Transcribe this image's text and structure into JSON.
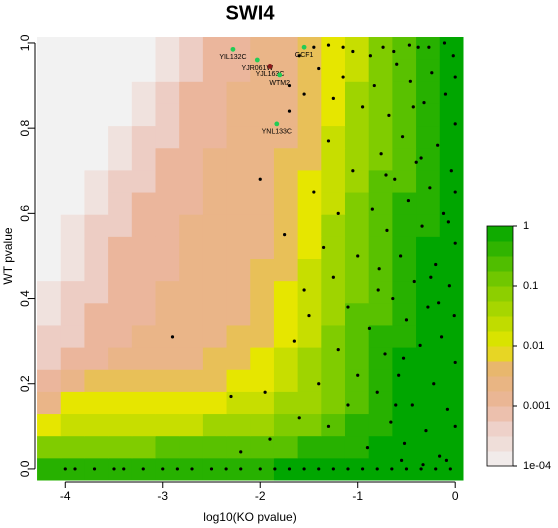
{
  "chart_data": {
    "type": "heatmap",
    "title": "SWI4",
    "x_label": "log10(KO pvalue)",
    "y_label": "WT pvalue",
    "xlim": [
      -4.29,
      0.08
    ],
    "ylim": [
      -0.026,
      1.014
    ],
    "xticks": [
      -4,
      -3,
      -2,
      -1,
      0
    ],
    "yticks": [
      {
        "value": 0,
        "label": "0.0"
      },
      0.2,
      0.4,
      0.6,
      0.8,
      {
        "value": 1,
        "label": "1.0"
      }
    ],
    "x": [
      -4.168,
      -3.925,
      -3.682,
      -3.439,
      -3.196,
      -2.953,
      -2.71,
      -2.467,
      -2.224,
      -1.981,
      -1.738,
      -1.495,
      -1.252,
      -1.009,
      -0.766,
      -0.523,
      -0.28,
      -0.037
    ],
    "y": [
      0,
      0.052,
      0.104,
      0.156,
      0.208,
      0.26,
      0.312,
      0.364,
      0.416,
      0.468,
      0.52,
      0.572,
      0.624,
      0.676,
      0.728,
      0.78,
      0.832,
      0.884,
      0.936,
      0.988
    ],
    "z": [
      [
        0.5,
        0.5,
        0.5,
        0.5,
        0.5,
        0.5,
        0.5,
        0.5,
        0.5,
        0.5,
        1,
        1,
        1,
        1,
        1,
        1,
        1,
        1
      ],
      [
        0.1,
        0.1,
        0.1,
        0.1,
        0.1,
        0.2,
        0.2,
        0.2,
        0.2,
        0.2,
        0.2,
        0.5,
        0.5,
        0.5,
        1,
        1,
        1,
        1
      ],
      [
        0.01,
        0.02,
        0.02,
        0.02,
        0.02,
        0.02,
        0.02,
        0.05,
        0.05,
        0.05,
        0.1,
        0.1,
        0.2,
        0.5,
        0.5,
        1,
        1,
        1
      ],
      [
        0.002,
        0.01,
        0.01,
        0.01,
        0.01,
        0.01,
        0.01,
        0.01,
        0.02,
        0.02,
        0.05,
        0.05,
        0.1,
        0.2,
        0.5,
        1,
        1,
        1
      ],
      [
        0.001,
        0.002,
        0.005,
        0.005,
        0.005,
        0.005,
        0.005,
        0.005,
        0.01,
        0.01,
        0.02,
        0.05,
        0.1,
        0.2,
        0.5,
        1,
        1,
        1
      ],
      [
        0.0005,
        0.001,
        0.001,
        0.002,
        0.002,
        0.002,
        0.002,
        0.005,
        0.005,
        0.01,
        0.02,
        0.05,
        0.1,
        0.2,
        0.5,
        1,
        1,
        1
      ],
      [
        0.0005,
        0.0005,
        0.001,
        0.001,
        0.002,
        0.002,
        0.002,
        0.002,
        0.005,
        0.005,
        0.01,
        0.02,
        0.1,
        0.2,
        0.5,
        0.5,
        1,
        1
      ],
      [
        0.0002,
        0.0005,
        0.001,
        0.001,
        0.001,
        0.002,
        0.002,
        0.002,
        0.002,
        0.005,
        0.01,
        0.02,
        0.05,
        0.2,
        0.2,
        0.5,
        1,
        1
      ],
      [
        0.0002,
        0.0005,
        0.0005,
        0.001,
        0.001,
        0.002,
        0.002,
        0.002,
        0.002,
        0.005,
        0.01,
        0.02,
        0.05,
        0.1,
        0.2,
        0.5,
        1,
        1
      ],
      [
        0.0001,
        0.0002,
        0.0005,
        0.001,
        0.001,
        0.001,
        0.002,
        0.002,
        0.002,
        0.005,
        0.005,
        0.02,
        0.05,
        0.1,
        0.2,
        0.5,
        1,
        1
      ],
      [
        0.0001,
        0.0002,
        0.0005,
        0.001,
        0.001,
        0.001,
        0.002,
        0.002,
        0.002,
        0.002,
        0.005,
        0.01,
        0.05,
        0.1,
        0.2,
        0.5,
        1,
        1
      ],
      [
        0.0001,
        0.0002,
        0.0005,
        0.0005,
        0.001,
        0.001,
        0.002,
        0.002,
        0.002,
        0.002,
        0.005,
        0.01,
        0.05,
        0.1,
        0.2,
        0.5,
        0.5,
        1
      ],
      [
        0.0001,
        0.0001,
        0.0002,
        0.0005,
        0.001,
        0.001,
        0.001,
        0.002,
        0.002,
        0.002,
        0.005,
        0.01,
        0.02,
        0.1,
        0.2,
        0.5,
        0.5,
        1
      ],
      [
        0.0001,
        0.0001,
        0.0002,
        0.0005,
        0.0005,
        0.001,
        0.001,
        0.002,
        0.002,
        0.002,
        0.005,
        0.01,
        0.02,
        0.05,
        0.2,
        0.2,
        0.5,
        1
      ],
      [
        0.0001,
        0.0001,
        0.0001,
        0.0002,
        0.0005,
        0.001,
        0.001,
        0.002,
        0.002,
        0.002,
        0.005,
        0.005,
        0.02,
        0.05,
        0.1,
        0.2,
        0.5,
        1
      ],
      [
        0.0001,
        0.0001,
        0.0001,
        0.0002,
        0.0005,
        0.0005,
        0.001,
        0.001,
        0.002,
        0.002,
        0.002,
        0.005,
        0.02,
        0.05,
        0.1,
        0.2,
        0.5,
        1
      ],
      [
        0.0001,
        0.0001,
        0.0001,
        0.0001,
        0.0002,
        0.0005,
        0.001,
        0.001,
        0.002,
        0.002,
        0.002,
        0.005,
        0.01,
        0.05,
        0.1,
        0.2,
        0.5,
        1
      ],
      [
        0.0001,
        0.0001,
        0.0001,
        0.0001,
        0.0002,
        0.0005,
        0.001,
        0.001,
        0.002,
        0.002,
        0.002,
        0.005,
        0.01,
        0.05,
        0.1,
        0.2,
        0.5,
        1
      ],
      [
        0.0001,
        0.0001,
        0.0001,
        0.0001,
        0.0001,
        0.0002,
        0.0005,
        0.001,
        0.001,
        0.002,
        0.002,
        0.005,
        0.01,
        0.02,
        0.1,
        0.2,
        0.5,
        1
      ],
      [
        0.0001,
        0.0001,
        0.0001,
        0.0001,
        0.0001,
        0.0002,
        0.0005,
        0.001,
        0.001,
        0.002,
        0.002,
        0.005,
        0.01,
        0.02,
        0.1,
        0.2,
        0.5,
        1
      ]
    ],
    "colorscale": [
      [
        0.0001,
        "#F2F2F2"
      ],
      [
        0.0005,
        "#EDCDC4"
      ],
      [
        0.001,
        "#EBB69C"
      ],
      [
        0.004,
        "#E8B474"
      ],
      [
        0.01,
        "#E6E600"
      ],
      [
        0.1,
        "#80CC00"
      ],
      [
        1,
        "#00A600"
      ]
    ],
    "clim": [
      0.0001,
      1
    ],
    "cticks": [
      1,
      0.1,
      0.01,
      0.001,
      {
        "value": 0.0001,
        "label": "1e-04"
      }
    ],
    "points": {
      "color": "#000000",
      "x": [
        -4.0,
        -3.9,
        -3.7,
        -3.5,
        -3.4,
        -3.2,
        -3.0,
        -2.85,
        -2.7,
        -2.5,
        -2.35,
        -2.2,
        -2.0,
        -1.85,
        -1.7,
        -1.55,
        -1.4,
        -1.25,
        -1.1,
        -0.95,
        -0.8,
        -0.65,
        -0.5,
        -0.35,
        -0.2,
        -0.05,
        -2.9,
        -2.3,
        -2.0,
        -1.95,
        -1.7,
        -1.65,
        -1.6,
        -1.55,
        -1.5,
        -1.45,
        -1.4,
        -1.35,
        -1.3,
        -1.3,
        -1.25,
        -1.2,
        -1.2,
        -1.15,
        -1.1,
        -1.1,
        -1.05,
        -1.0,
        -1.0,
        -0.95,
        -1.6,
        -1.45,
        -1.3,
        -1.15,
        -1.05,
        -1.7,
        -1.55,
        -1.4,
        -1.25,
        -1.9,
        -2.2,
        -1.75,
        -0.9,
        -0.88,
        -0.85,
        -0.83,
        -0.8,
        -0.78,
        -0.76,
        -0.74,
        -0.72,
        -0.7,
        -0.68,
        -0.66,
        -0.64,
        -0.62,
        -0.6,
        -0.58,
        -0.56,
        -0.54,
        -0.52,
        -0.5,
        -0.48,
        -0.46,
        -0.44,
        -0.42,
        -0.4,
        -0.38,
        -0.36,
        -0.34,
        -0.32,
        -0.3,
        -0.28,
        -0.26,
        -0.24,
        -0.22,
        -0.2,
        -0.18,
        -0.16,
        -0.14,
        -0.12,
        -0.1,
        -0.08,
        -0.06,
        -0.04,
        -0.02,
        0,
        0,
        0,
        0,
        0,
        0,
        -0.87,
        -0.63,
        -0.47,
        -0.27,
        -0.11,
        -0.55,
        -0.33,
        -0.09,
        -0.79,
        -0.61,
        -0.43,
        -0.25,
        -0.07,
        -0.71,
        -0.53,
        -0.35,
        -0.17,
        -0.01
      ],
      "y": [
        0,
        0,
        0,
        0,
        0,
        0,
        0,
        0,
        0,
        0,
        0,
        0,
        0,
        0,
        0,
        0,
        0,
        0,
        0,
        0,
        0,
        0,
        0,
        0,
        0,
        0,
        0.31,
        0.17,
        0.68,
        0.18,
        0.84,
        0.3,
        0.12,
        0.42,
        0.36,
        0.65,
        0.2,
        0.52,
        0.1,
        0.77,
        0.45,
        0.28,
        0.6,
        0.92,
        0.15,
        0.38,
        0.7,
        0.5,
        0.22,
        0.85,
        0.97,
        0.99,
        0.995,
        0.99,
        0.98,
        0.9,
        0.88,
        0.94,
        0.87,
        0.07,
        0.04,
        0.55,
        0.05,
        0.33,
        0.61,
        0.9,
        0.18,
        0.47,
        0.74,
        0.99,
        0.27,
        0.56,
        0.83,
        0.11,
        0.4,
        0.68,
        0.95,
        0.22,
        0.5,
        0.78,
        0.06,
        0.35,
        0.63,
        0.91,
        0.15,
        0.44,
        0.72,
        0.99,
        0.29,
        0.57,
        0.86,
        0.09,
        0.38,
        0.66,
        0.93,
        0.2,
        0.48,
        0.76,
        0.03,
        0.31,
        0.6,
        0.88,
        0.14,
        0.43,
        0.7,
        0.97,
        0.25,
        0.53,
        0.81,
        0.1,
        0.65,
        0.92,
        0.97,
        0.98,
        0.995,
        0.99,
        1.0,
        0.02,
        0.01,
        0.02,
        0.42,
        0.15,
        0.85,
        0.45,
        0.58,
        0.69,
        0.26,
        0.73,
        0.39,
        0.36
      ]
    },
    "highlights": {
      "labels": [
        "YIL132C",
        "YJR061W",
        "YJL163C",
        "WTM2",
        "GCF1",
        "YNL133C"
      ],
      "x": [
        -2.28,
        -2.03,
        -1.9,
        -1.8,
        -1.55,
        -1.83
      ],
      "y": [
        0.985,
        0.96,
        0.945,
        0.925,
        0.99,
        0.81
      ],
      "colors": [
        "#22cc55",
        "#22cc55",
        "#8b1a1a",
        "#22cc55",
        "#22cc55",
        "#22cc55"
      ]
    }
  }
}
